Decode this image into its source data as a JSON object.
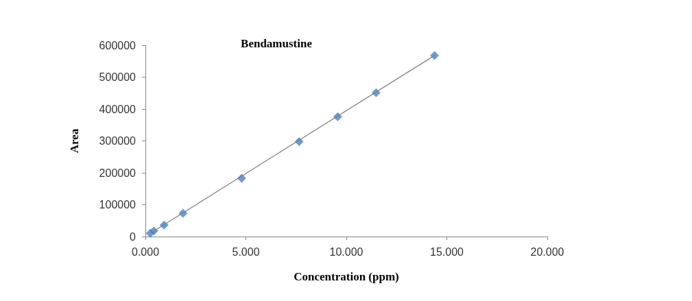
{
  "chart_data": {
    "type": "scatter",
    "title": "Bendamustine",
    "xlabel": "Concentration (ppm)",
    "ylabel": "Area",
    "xlim": [
      0,
      20
    ],
    "xticks": [
      {
        "value": 0,
        "label": "0.000"
      },
      {
        "value": 5,
        "label": "5.000"
      },
      {
        "value": 10,
        "label": "10.000"
      },
      {
        "value": 15,
        "label": "15.000"
      },
      {
        "value": 20,
        "label": "20.000"
      }
    ],
    "ylim": [
      0,
      600000
    ],
    "yticks": [
      0,
      100000,
      200000,
      300000,
      400000,
      500000,
      600000
    ],
    "grid": false,
    "marker": "diamond",
    "series": [
      {
        "color": "#4f81bd",
        "x": [
          0.24,
          0.42,
          0.93,
          1.87,
          4.79,
          7.65,
          9.57,
          11.48,
          14.39
        ],
        "values": [
          10000,
          18000,
          36000,
          73000,
          183000,
          298000,
          376000,
          451000,
          568000
        ]
      },
      {
        "type": "line",
        "color": "#7f7f7f",
        "x": [
          0.24,
          14.39
        ],
        "values": [
          10000,
          568000
        ],
        "marker": "none",
        "line_style": "solid"
      }
    ]
  }
}
